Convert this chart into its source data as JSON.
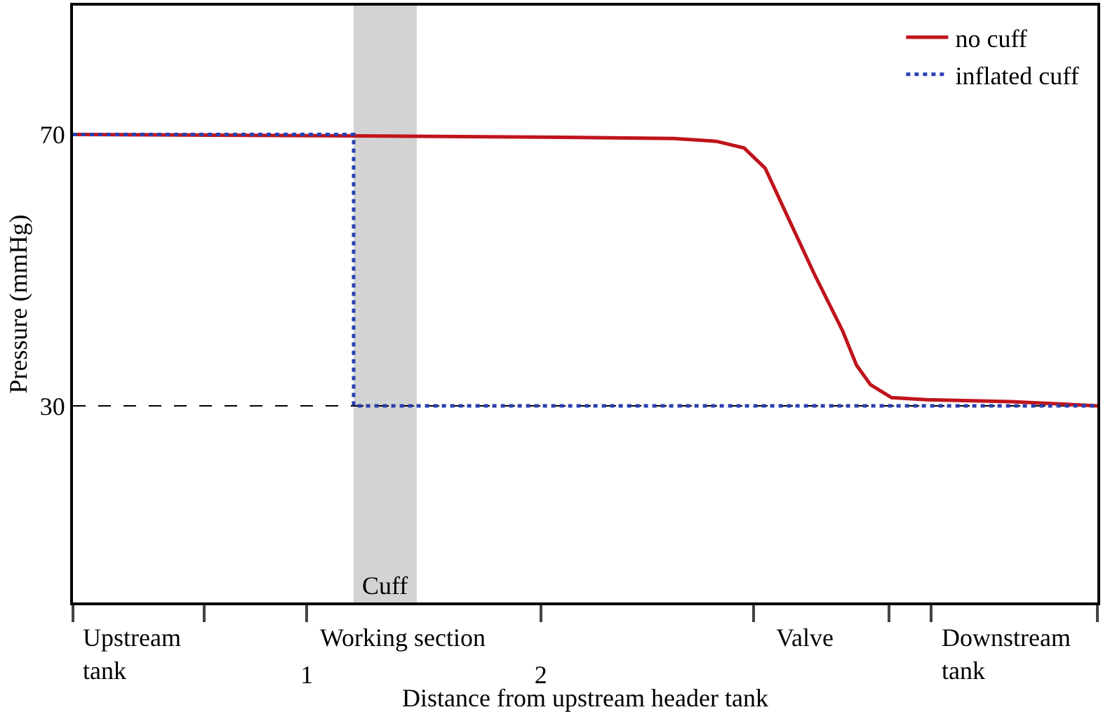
{
  "chart_data": {
    "type": "line",
    "xlabel": "Distance from upstream header tank",
    "ylabel": "Pressure (mmHg)",
    "xlim": [
      0,
      4.38
    ],
    "ylim": [
      1,
      89
    ],
    "xticks": [
      {
        "value": 0,
        "label": null
      },
      {
        "value": 0.56,
        "label": null
      },
      1,
      2,
      {
        "value": 2.91,
        "label": null
      },
      {
        "value": 3.49,
        "label": null
      },
      {
        "value": 3.67,
        "label": null
      },
      {
        "value": 4.38,
        "label": null
      }
    ],
    "yticks": [
      30,
      70
    ],
    "grid": false,
    "legend": "top right",
    "marker": "none",
    "series": [
      {
        "name": "no cuff",
        "color": "#c0141c",
        "line_style": "solid",
        "x": [
          0,
          1.2,
          2.09,
          2.57,
          2.75,
          2.87,
          2.96,
          3.05,
          3.17,
          3.29,
          3.35,
          3.41,
          3.5,
          3.65,
          4.01,
          4.38
        ],
        "values": [
          70,
          69.8,
          69.6,
          69.4,
          69,
          68,
          65,
          58.3,
          49.4,
          41.1,
          36,
          33.1,
          31.2,
          30.9,
          30.6,
          30
        ]
      },
      {
        "name": "inflated cuff",
        "color": "#2a3fb0",
        "line_style": "dotted",
        "x": [
          0,
          1.2,
          1.2,
          4.38
        ],
        "values": [
          70,
          70,
          30,
          30
        ]
      }
    ],
    "ref_lines": [
      {
        "axis": "y",
        "value": 30,
        "color": "#000000",
        "line_style": "dashed"
      }
    ],
    "bands": [
      {
        "axis": "x",
        "from": 1.2,
        "to": 1.47,
        "label": "Cuff",
        "color": "#d3d3d3"
      }
    ],
    "annotations": [
      "Upstream\ntank",
      "Working section",
      "Valve",
      "Downstream\ntank"
    ]
  }
}
